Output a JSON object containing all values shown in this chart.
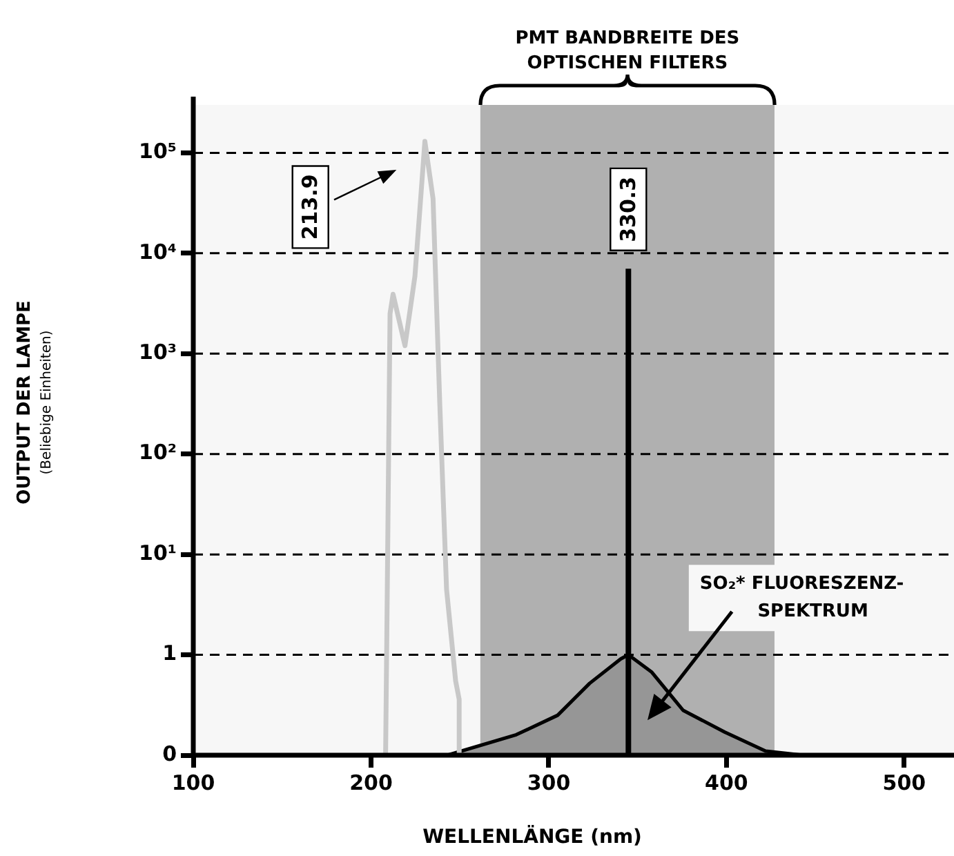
{
  "chart_data": {
    "type": "line",
    "xlabel": "WELLENLÄNGE (nm)",
    "ylabel": "OUTPUT DER LAMPE\n(Beliebige Einheiten)",
    "log": "y",
    "grid": "y",
    "xlim": [
      100,
      528
    ],
    "xticks": [
      100,
      200,
      300,
      400,
      500
    ],
    "ylim": [
      0.1,
      300000
    ],
    "yticks": [
      {
        "value": 0.1,
        "label": "0"
      },
      1,
      {
        "value": 10,
        "label": "10¹"
      },
      {
        "value": 100,
        "label": "10²"
      },
      {
        "value": 1000,
        "label": "10³"
      },
      {
        "value": 10000,
        "label": "10⁴"
      },
      {
        "value": 100000,
        "label": "10⁵"
      }
    ],
    "series": [
      {
        "color": "#c8c8c8",
        "x": [
          208.2,
          208.9,
          210.7,
          212.4,
          219.1,
          224.7,
          230.3,
          234.9,
          238.7,
          242.5,
          247.6,
          249.6,
          249.6
        ],
        "values": [
          0.1,
          1.6,
          2500,
          3900,
          1200,
          5900,
          130000,
          35000,
          310,
          4.5,
          0.55,
          0.36,
          0.1
        ]
      },
      {
        "color": "#000000",
        "x": [
          344.8,
          344.8
        ],
        "values": [
          0.1,
          7000
        ]
      },
      {
        "type": "area",
        "color": "#969696",
        "x": [
          243,
          281.7,
          305,
          323,
          340.5,
          344.8,
          358,
          375.6,
          399,
          422,
          443
        ],
        "values": [
          0.1,
          0.16,
          0.25,
          0.52,
          0.91,
          1,
          0.67,
          0.28,
          0.17,
          0.11,
          0.1
        ]
      }
    ],
    "bands": [
      {
        "axis": "x",
        "from": 261.5,
        "to": 427,
        "label": "PMT BANDBREITE DES\nOPTISCHEN FILTERS",
        "color": "#b0b0b0"
      }
    ],
    "annotations": [
      "213.9",
      {
        "text": "330.3",
        "x": 344.8,
        "y": 7000
      },
      "SO₂* FLUORESZENZ-\nSPEKTRUM"
    ]
  }
}
